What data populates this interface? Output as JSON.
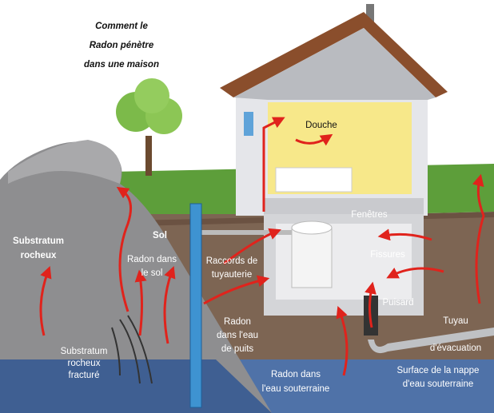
{
  "title": [
    "Comment le",
    "Radon pénètre",
    "dans une maison"
  ],
  "labels": [
    [
      "Substratum",
      "rocheux"
    ],
    [
      "Sol"
    ],
    [
      "Radon dans",
      "le sol"
    ],
    [
      "Raccords de",
      "tuyauterie"
    ],
    [
      "Radon",
      "dans l'eau",
      "de puits"
    ],
    [
      "Substratum",
      "rocheux",
      "fracturé"
    ],
    [
      "Radon dans",
      "l'eau souterraine"
    ],
    [
      "Douche"
    ],
    [
      "Fenêtres"
    ],
    [
      "Fissures"
    ],
    [
      "Puisard"
    ],
    [
      "Tuyau",
      "d'évacuation"
    ],
    [
      "Surface de la nappe",
      "d'eau souterraine"
    ]
  ]
}
